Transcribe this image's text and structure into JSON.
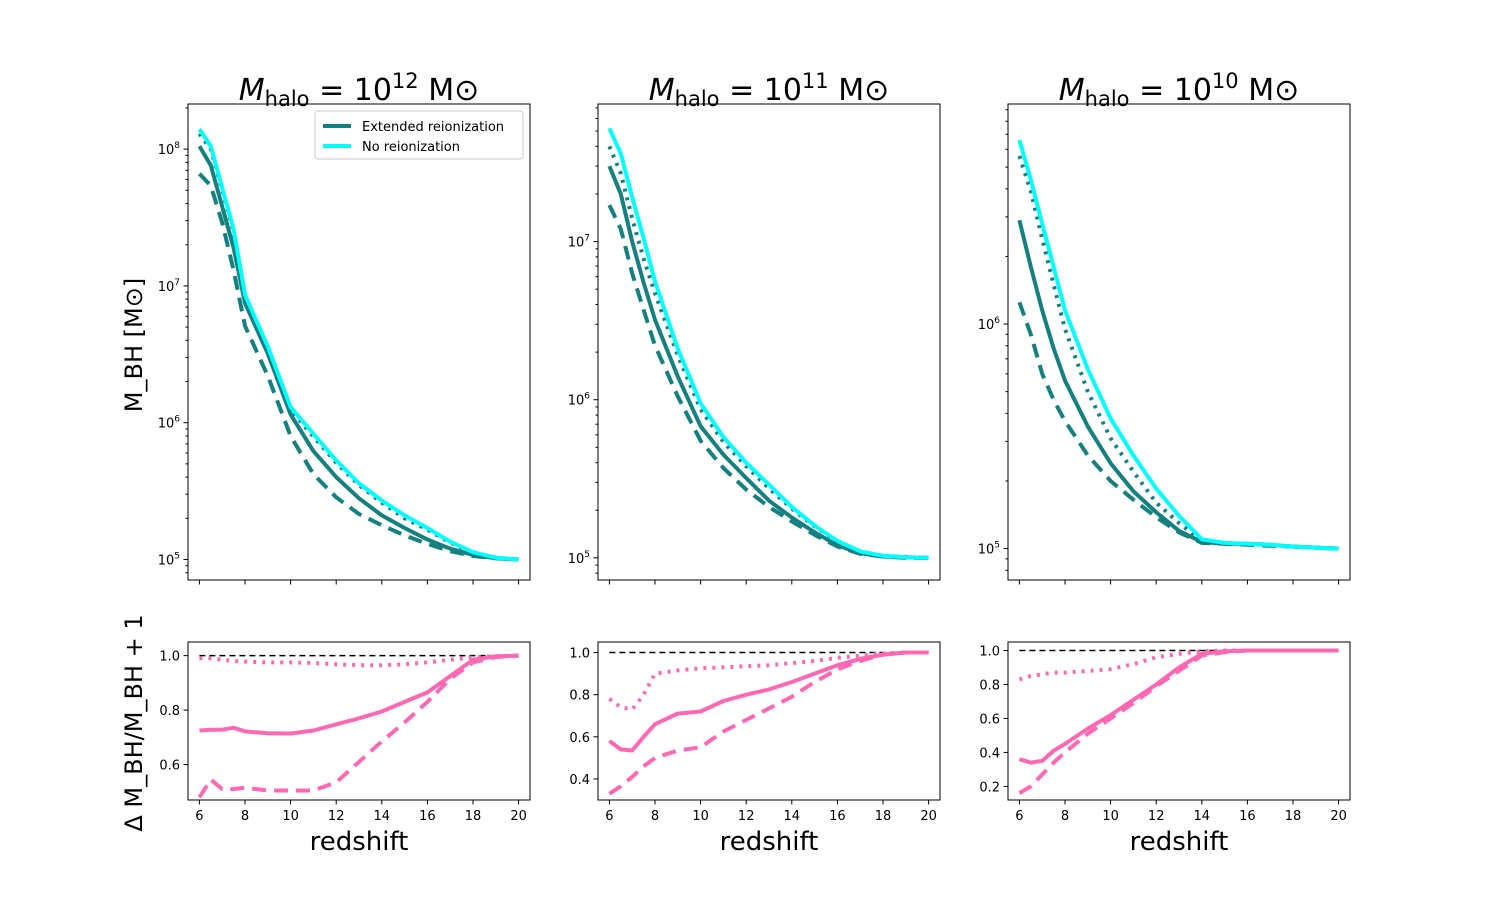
{
  "chart_data": {
    "type": "line",
    "x": [
      6,
      6.5,
      7,
      7.5,
      8,
      9,
      10,
      11,
      12,
      13,
      14,
      15,
      16,
      17,
      18,
      19,
      20
    ],
    "xlabel": "redshift",
    "xlim": [
      5.5,
      20.5
    ],
    "xticks": [
      6,
      8,
      10,
      12,
      14,
      16,
      18,
      20
    ],
    "top_ylabel": "M_BH [M⊙]",
    "top_yscale": "log",
    "bottom_ylabel": "Δ M_BH/M_BH + 1",
    "colors": {
      "extended": "#148080",
      "no_reion": "#00FFFF",
      "ratio": "#FF69B4",
      "reference": "#000000"
    },
    "legend": {
      "placement": "top-right of first panel",
      "entries": [
        "Extended reionization",
        "No reionization"
      ]
    },
    "panels": [
      {
        "title": {
          "m": "M",
          "sub": "halo",
          "eq": " = 10",
          "exp": "12",
          "unit": " M⊙"
        },
        "top_ylim_log10": [
          4.85,
          8.33
        ],
        "top_yticks": [
          {
            "base": "10",
            "exp": "5",
            "value": 5
          },
          {
            "base": "10",
            "exp": "6",
            "value": 6
          },
          {
            "base": "10",
            "exp": "7",
            "value": 7
          },
          {
            "base": "10",
            "exp": "8",
            "value": 8
          }
        ],
        "series": [
          {
            "name": "No reionization",
            "key": "no_reion",
            "style": "solid",
            "values": [
              140000000.0,
              105000000.0,
              52000000.0,
              26000000.0,
              8600000.0,
              3600000.0,
              1300000.0,
              830000.0,
              530000.0,
              360000.0,
              270000.0,
              210000.0,
              170000.0,
              135000.0,
              113000.0,
              103000.0,
              100000.0
            ]
          },
          {
            "name": "Extended reionization",
            "key": "extended",
            "style": "solid",
            "values": [
              105000000.0,
              76000000.0,
              38000000.0,
              19000000.0,
              7500000.0,
              3200000.0,
              1150000.0,
              620000.0,
              400000.0,
              280000.0,
              210000.0,
              170000.0,
              140000.0,
              120000.0,
              108000.0,
              102000.0,
              100000.0
            ]
          },
          {
            "name": "Extended reionization (variant)",
            "key": "extended",
            "style": "dashed",
            "values": [
              66000000.0,
              54000000.0,
              29000000.0,
              13000000.0,
              5100000.0,
              2200000.0,
              800000.0,
              420000.0,
              285000.0,
              215000.0,
              178000.0,
              150000.0,
              130000.0,
              115000.0,
              106000.0,
              102000.0,
              100000.0
            ]
          },
          {
            "name": "Extended reionization (variant)",
            "key": "extended",
            "style": "dotted",
            "values": [
              130000000.0,
              100000000.0,
              50000000.0,
              25000000.0,
              8500000.0,
              3500000.0,
              1250000.0,
              790000.0,
              510000.0,
              350000.0,
              260000.0,
              200000.0,
              165000.0,
              133000.0,
              112000.0,
              103000.0,
              100000.0
            ]
          }
        ],
        "bottom_ylim": [
          0.47,
          1.05
        ],
        "bottom_yticks": [
          "0.6",
          "0.8",
          "1.0"
        ],
        "ratios": [
          {
            "style": "solid",
            "values": [
              0.725,
              0.728,
              0.728,
              0.735,
              0.722,
              0.715,
              0.714,
              0.725,
              0.748,
              0.77,
              0.795,
              0.83,
              0.865,
              0.925,
              0.985,
              0.997,
              1.0
            ]
          },
          {
            "style": "dashed",
            "values": [
              0.48,
              0.545,
              0.51,
              0.51,
              0.515,
              0.505,
              0.505,
              0.505,
              0.535,
              0.61,
              0.685,
              0.755,
              0.83,
              0.915,
              0.975,
              0.995,
              1.0
            ]
          },
          {
            "style": "dotted",
            "values": [
              0.99,
              0.99,
              0.985,
              0.98,
              0.978,
              0.975,
              0.975,
              0.973,
              0.968,
              0.965,
              0.965,
              0.968,
              0.975,
              0.985,
              0.993,
              0.998,
              1.0
            ]
          }
        ]
      },
      {
        "title": {
          "m": "M",
          "sub": "halo",
          "eq": " = 10",
          "exp": "11",
          "unit": " M⊙"
        },
        "top_ylim_log10": [
          4.86,
          7.87
        ],
        "top_yticks": [
          {
            "base": "10",
            "exp": "5",
            "value": 5
          },
          {
            "base": "10",
            "exp": "6",
            "value": 6
          },
          {
            "base": "10",
            "exp": "7",
            "value": 7
          }
        ],
        "series": [
          {
            "name": "No reionization",
            "key": "no_reion",
            "style": "solid",
            "values": [
              52000000.0,
              36000000.0,
              19000000.0,
              10500000.0,
              5600000.0,
              2100000.0,
              950000.0,
              580000.0,
              400000.0,
              290000.0,
              210000.0,
              160000.0,
              128000.0,
              110000.0,
              103000.0,
              101000.0,
              100000.0
            ]
          },
          {
            "name": "Extended reionization",
            "key": "extended",
            "style": "solid",
            "values": [
              30000000.0,
              20000000.0,
              10000000.0,
              5500000.0,
              3200000.0,
              1400000.0,
              680000.0,
              450000.0,
              320000.0,
              230000.0,
              180000.0,
              145000.0,
              120000.0,
              107000.0,
              102000.0,
              101000.0,
              100000.0
            ]
          },
          {
            "name": "Extended reionization (variant)",
            "key": "extended",
            "style": "dashed",
            "values": [
              17000000.0,
              12000000.0,
              6300000.0,
              3700000.0,
              2200000.0,
              1050000.0,
              550000.0,
              370000.0,
              270000.0,
              210000.0,
              170000.0,
              140000.0,
              118000.0,
              106000.0,
              102000.0,
              100000.0,
              100000.0
            ]
          },
          {
            "name": "Extended reionization (variant)",
            "key": "extended",
            "style": "dotted",
            "values": [
              40000000.0,
              27000000.0,
              14000000.0,
              7800000.0,
              4700000.0,
              1900000.0,
              870000.0,
              540000.0,
              380000.0,
              275000.0,
              205000.0,
              158000.0,
              127000.0,
              109000.0,
              103000.0,
              101000.0,
              100000.0
            ]
          }
        ],
        "bottom_ylim": [
          0.3,
          1.05
        ],
        "bottom_yticks": [
          "0.4",
          "0.6",
          "0.8",
          "1.0"
        ],
        "ratios": [
          {
            "style": "solid",
            "values": [
              0.58,
              0.54,
              0.535,
              0.6,
              0.66,
              0.71,
              0.72,
              0.77,
              0.8,
              0.825,
              0.86,
              0.9,
              0.94,
              0.97,
              0.99,
              1.0,
              1.0
            ]
          },
          {
            "style": "dashed",
            "values": [
              0.33,
              0.365,
              0.41,
              0.46,
              0.5,
              0.535,
              0.55,
              0.625,
              0.68,
              0.735,
              0.79,
              0.86,
              0.92,
              0.96,
              0.99,
              1.0,
              1.0
            ]
          },
          {
            "style": "dotted",
            "values": [
              0.78,
              0.74,
              0.73,
              0.8,
              0.9,
              0.915,
              0.925,
              0.93,
              0.935,
              0.94,
              0.95,
              0.96,
              0.975,
              0.985,
              0.995,
              1.0,
              1.0
            ]
          }
        ]
      },
      {
        "title": {
          "m": "M",
          "sub": "halo",
          "eq": " = 10",
          "exp": "10",
          "unit": " M⊙"
        },
        "top_ylim_log10": [
          4.86,
          6.98
        ],
        "top_yticks": [
          {
            "base": "10",
            "exp": "5",
            "value": 5
          },
          {
            "base": "10",
            "exp": "6",
            "value": 6
          }
        ],
        "series": [
          {
            "name": "No reionization",
            "key": "no_reion",
            "style": "solid",
            "values": [
              6600000.0,
              4400000.0,
              2800000.0,
              1800000.0,
              1150000.0,
              630000.0,
              380000.0,
              260000.0,
              185000.0,
              140000.0,
              110000.0,
              106000.0,
              105000.0,
              104000.0,
              102000.0,
              101000.0,
              100000.0
            ]
          },
          {
            "name": "Extended reionization",
            "key": "extended",
            "style": "solid",
            "values": [
              2900000.0,
              1800000.0,
              1150000.0,
              780000.0,
              560000.0,
              350000.0,
              240000.0,
              180000.0,
              145000.0,
              120000.0,
              107000.0,
              105000.0,
              105000.0,
              104000.0,
              102000.0,
              101000.0,
              100000.0
            ]
          },
          {
            "name": "Extended reionization (variant)",
            "key": "extended",
            "style": "dashed",
            "values": [
              1250000.0,
              900000.0,
              600000.0,
              460000.0,
              370000.0,
              260000.0,
              200000.0,
              165000.0,
              138000.0,
              118000.0,
              106000.0,
              105000.0,
              104000.0,
              103000.0,
              102000.0,
              101000.0,
              100000.0
            ]
          },
          {
            "name": "Extended reionization (variant)",
            "key": "extended",
            "style": "dotted",
            "values": [
              5600000.0,
              3900000.0,
              2400000.0,
              1500000.0,
              950000.0,
              500000.0,
              310000.0,
              220000.0,
              160000.0,
              130000.0,
              108000.0,
              105000.0,
              105000.0,
              104000.0,
              102000.0,
              101000.0,
              100000.0
            ]
          }
        ],
        "bottom_ylim": [
          0.12,
          1.05
        ],
        "bottom_yticks": [
          "0.2",
          "0.4",
          "0.6",
          "0.8",
          "1.0"
        ],
        "ratios": [
          {
            "style": "solid",
            "values": [
              0.36,
              0.34,
              0.35,
              0.41,
              0.45,
              0.54,
              0.62,
              0.71,
              0.8,
              0.9,
              0.98,
              0.995,
              1.0,
              1.0,
              1.0,
              1.0,
              1.0
            ]
          },
          {
            "style": "dashed",
            "values": [
              0.16,
              0.2,
              0.27,
              0.34,
              0.4,
              0.51,
              0.6,
              0.69,
              0.79,
              0.88,
              0.97,
              0.99,
              1.0,
              1.0,
              1.0,
              1.0,
              1.0
            ]
          },
          {
            "style": "dotted",
            "values": [
              0.83,
              0.85,
              0.86,
              0.87,
              0.87,
              0.88,
              0.89,
              0.92,
              0.96,
              0.98,
              0.995,
              1.0,
              1.0,
              1.0,
              1.0,
              1.0,
              1.0
            ]
          }
        ]
      }
    ]
  }
}
